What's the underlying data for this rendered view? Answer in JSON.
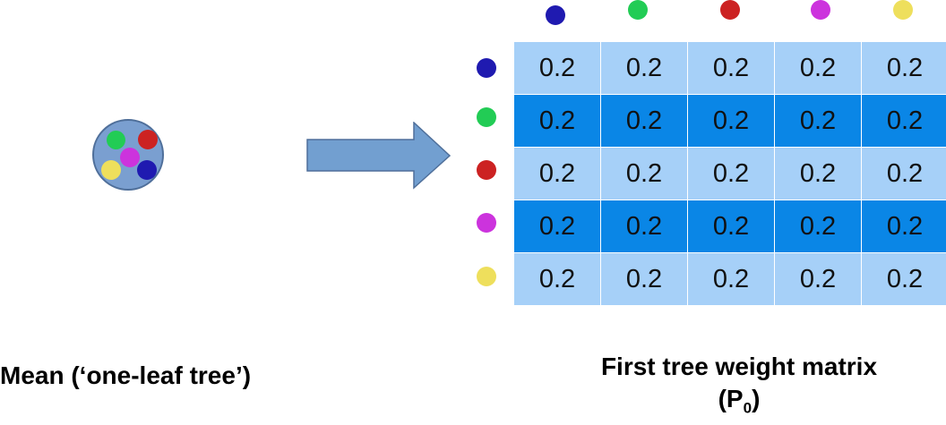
{
  "colors": {
    "navy": "#1f1ab0",
    "green": "#22cc55",
    "red": "#cc2222",
    "magenta": "#cc33dd",
    "yellow": "#eedf5c",
    "light_cell": "#a6d0f8",
    "dark_cell": "#0a86e6",
    "leaf_fill": "#7a9fd0",
    "arrow_fill": "#729fd0"
  },
  "leaf": {
    "dots": [
      "green-dot-icon",
      "red-dot-icon",
      "magenta-dot-icon",
      "yellow-dot-icon",
      "navy-dot-icon"
    ]
  },
  "matrix": {
    "column_dots": [
      "navy-dot-icon",
      "green-dot-icon",
      "red-dot-icon",
      "magenta-dot-icon",
      "yellow-dot-icon"
    ],
    "row_dots": [
      "navy-dot-icon",
      "green-dot-icon",
      "red-dot-icon",
      "magenta-dot-icon",
      "yellow-dot-icon"
    ],
    "rows": [
      [
        "0.2",
        "0.2",
        "0.2",
        "0.2",
        "0.2"
      ],
      [
        "0.2",
        "0.2",
        "0.2",
        "0.2",
        "0.2"
      ],
      [
        "0.2",
        "0.2",
        "0.2",
        "0.2",
        "0.2"
      ],
      [
        "0.2",
        "0.2",
        "0.2",
        "0.2",
        "0.2"
      ],
      [
        "0.2",
        "0.2",
        "0.2",
        "0.2",
        "0.2"
      ]
    ]
  },
  "captions": {
    "left": "Mean (‘one-leaf tree’)",
    "right_line1": "First tree weight matrix",
    "right_open": "(P",
    "right_sub": "0",
    "right_close": ")"
  }
}
